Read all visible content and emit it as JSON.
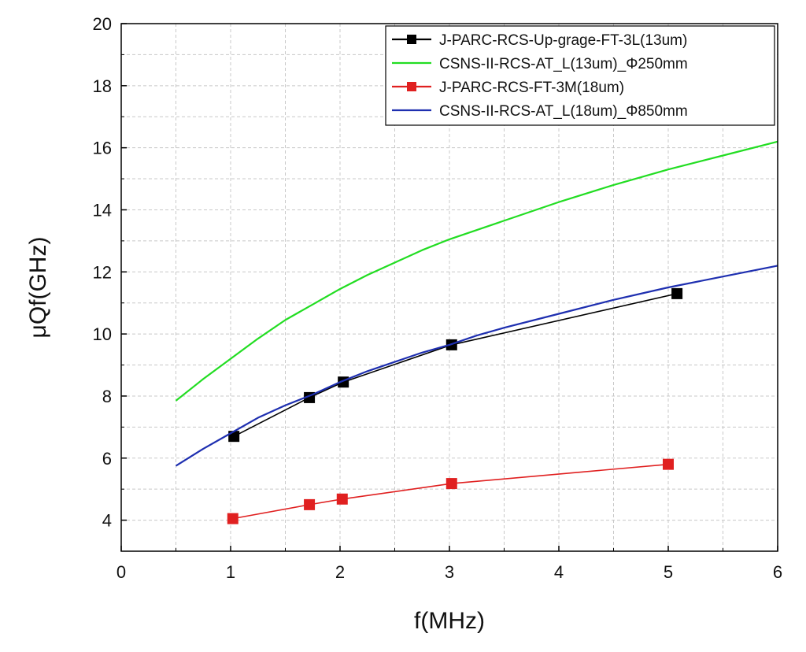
{
  "chart_data": {
    "type": "line",
    "xlabel": "f(MHz)",
    "ylabel": "μQf(GHz)",
    "xlim": [
      0,
      6
    ],
    "ylim": [
      3,
      20
    ],
    "xticks": [
      0,
      1,
      2,
      3,
      4,
      5,
      6
    ],
    "yticks": [
      4,
      6,
      8,
      10,
      12,
      14,
      16,
      18,
      20
    ],
    "grid": true,
    "legend_position": "top-right",
    "series": [
      {
        "name": "J-PARC-RCS-Up-grage-FT-3L(13um)",
        "color": "#000000",
        "marker": "square",
        "x": [
          1.03,
          1.72,
          2.03,
          3.02,
          5.08
        ],
        "y": [
          6.7,
          7.95,
          8.45,
          9.65,
          11.3
        ]
      },
      {
        "name": "CSNS-II-RCS-AT_L(13um)_Φ250mm",
        "color": "#22dd22",
        "marker": "none",
        "x": [
          0.5,
          0.75,
          1.0,
          1.25,
          1.5,
          1.75,
          2.0,
          2.25,
          2.5,
          2.75,
          3.0,
          3.5,
          4.0,
          4.5,
          5.0,
          5.5,
          6.0
        ],
        "y": [
          7.85,
          8.55,
          9.2,
          9.85,
          10.45,
          10.95,
          11.45,
          11.9,
          12.3,
          12.7,
          13.05,
          13.65,
          14.25,
          14.8,
          15.3,
          15.75,
          16.2
        ]
      },
      {
        "name": "J-PARC-RCS-FT-3M(18um)",
        "color": "#e02020",
        "marker": "square",
        "x": [
          1.02,
          1.72,
          2.02,
          3.02,
          5.0
        ],
        "y": [
          4.05,
          4.5,
          4.68,
          5.18,
          5.8
        ]
      },
      {
        "name": "CSNS-II-RCS-AT_L(18um)_Φ850mm",
        "color": "#1e2fb0",
        "marker": "none",
        "x": [
          0.5,
          0.75,
          1.0,
          1.25,
          1.5,
          1.75,
          2.0,
          2.25,
          2.5,
          2.75,
          3.0,
          3.25,
          3.5,
          4.0,
          4.5,
          5.0,
          5.5,
          6.0
        ],
        "y": [
          5.75,
          6.3,
          6.8,
          7.3,
          7.7,
          8.05,
          8.45,
          8.8,
          9.1,
          9.4,
          9.65,
          9.95,
          10.2,
          10.65,
          11.1,
          11.5,
          11.85,
          12.2
        ]
      }
    ]
  }
}
